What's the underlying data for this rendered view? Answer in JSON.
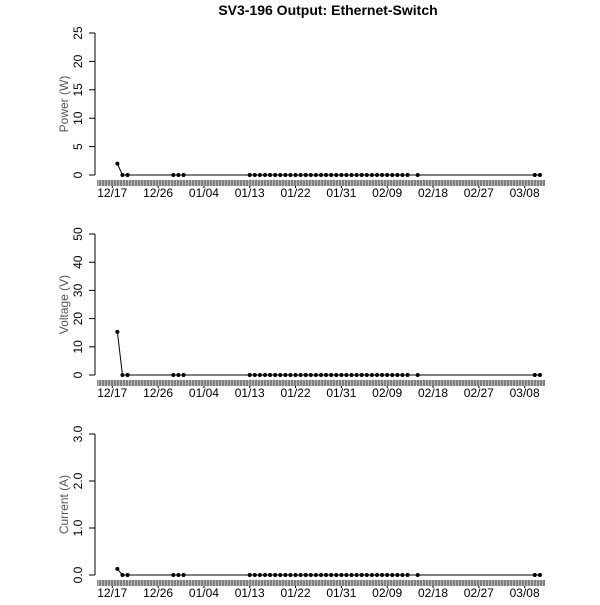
{
  "chart_data": [
    {
      "type": "line",
      "title": "SV3-196 Output: Ethernet-Switch",
      "ylabel": "Power (W)",
      "color": "#000000",
      "x": [
        "12/18",
        "12/19",
        "12/20",
        "12/29",
        "12/30",
        "12/31",
        "01/13",
        "01/14",
        "01/15",
        "01/16",
        "01/17",
        "01/18",
        "01/19",
        "01/20",
        "01/21",
        "01/22",
        "01/23",
        "01/24",
        "01/25",
        "01/26",
        "01/27",
        "01/28",
        "01/29",
        "01/30",
        "01/31",
        "02/01",
        "02/02",
        "02/03",
        "02/04",
        "02/05",
        "02/06",
        "02/07",
        "02/08",
        "02/09",
        "02/10",
        "02/11",
        "02/12",
        "02/13",
        "02/15",
        "03/10",
        "03/11"
      ],
      "values": [
        2,
        0,
        0,
        0,
        0,
        0,
        0,
        0,
        0,
        0,
        0,
        0,
        0,
        0,
        0,
        0,
        0,
        0,
        0,
        0,
        0,
        0,
        0,
        0,
        0,
        0,
        0,
        0,
        0,
        0,
        0,
        0,
        0,
        0,
        0,
        0,
        0,
        0,
        0,
        0,
        0
      ],
      "xlim": [
        "12/14",
        "03/12"
      ],
      "xticks": [
        "12/17",
        "12/26",
        "01/04",
        "01/13",
        "01/22",
        "01/31",
        "02/09",
        "02/18",
        "02/27",
        "03/08"
      ],
      "ylim": [
        0,
        25
      ],
      "yticks": [
        0,
        5,
        10,
        15,
        20,
        25
      ]
    },
    {
      "type": "line",
      "ylabel": "Voltage (V)",
      "color": "#000000",
      "x": [
        "12/18",
        "12/19",
        "12/20",
        "12/29",
        "12/30",
        "12/31",
        "01/13",
        "01/14",
        "01/15",
        "01/16",
        "01/17",
        "01/18",
        "01/19",
        "01/20",
        "01/21",
        "01/22",
        "01/23",
        "01/24",
        "01/25",
        "01/26",
        "01/27",
        "01/28",
        "01/29",
        "01/30",
        "01/31",
        "02/01",
        "02/02",
        "02/03",
        "02/04",
        "02/05",
        "02/06",
        "02/07",
        "02/08",
        "02/09",
        "02/10",
        "02/11",
        "02/12",
        "02/13",
        "02/15",
        "03/10",
        "03/11"
      ],
      "values": [
        15.3,
        0,
        0,
        0,
        0,
        0,
        0,
        0,
        0,
        0,
        0,
        0,
        0,
        0,
        0,
        0,
        0,
        0,
        0,
        0,
        0,
        0,
        0,
        0,
        0,
        0,
        0,
        0,
        0,
        0,
        0,
        0,
        0,
        0,
        0,
        0,
        0,
        0,
        0,
        0,
        0
      ],
      "xlim": [
        "12/14",
        "03/12"
      ],
      "xticks": [
        "12/17",
        "12/26",
        "01/04",
        "01/13",
        "01/22",
        "01/31",
        "02/09",
        "02/18",
        "02/27",
        "03/08"
      ],
      "ylim": [
        0,
        50
      ],
      "yticks": [
        0,
        10,
        20,
        30,
        40,
        50
      ]
    },
    {
      "type": "line",
      "ylabel": "Current (A)",
      "color": "#000000",
      "x": [
        "12/18",
        "12/19",
        "12/20",
        "12/29",
        "12/30",
        "12/31",
        "01/13",
        "01/14",
        "01/15",
        "01/16",
        "01/17",
        "01/18",
        "01/19",
        "01/20",
        "01/21",
        "01/22",
        "01/23",
        "01/24",
        "01/25",
        "01/26",
        "01/27",
        "01/28",
        "01/29",
        "01/30",
        "01/31",
        "02/01",
        "02/02",
        "02/03",
        "02/04",
        "02/05",
        "02/06",
        "02/07",
        "02/08",
        "02/09",
        "02/10",
        "02/11",
        "02/12",
        "02/13",
        "02/15",
        "03/10",
        "03/11"
      ],
      "values": [
        0.13,
        0,
        0,
        0,
        0,
        0,
        0,
        0,
        0,
        0,
        0,
        0,
        0,
        0,
        0,
        0,
        0,
        0,
        0,
        0,
        0,
        0,
        0,
        0,
        0,
        0,
        0,
        0,
        0,
        0,
        0,
        0,
        0,
        0,
        0,
        0,
        0,
        0,
        0,
        0,
        0
      ],
      "xlim": [
        "12/14",
        "03/12"
      ],
      "xticks": [
        "12/17",
        "12/26",
        "01/04",
        "01/13",
        "01/22",
        "01/31",
        "02/09",
        "02/18",
        "02/27",
        "03/08"
      ],
      "ylim": [
        0,
        3
      ],
      "yticks": [
        {
          "value": 0,
          "label": "0.0"
        },
        {
          "value": 1,
          "label": "1.0"
        },
        {
          "value": 2,
          "label": "2.0"
        },
        {
          "value": 3,
          "label": "3.0"
        }
      ]
    }
  ]
}
